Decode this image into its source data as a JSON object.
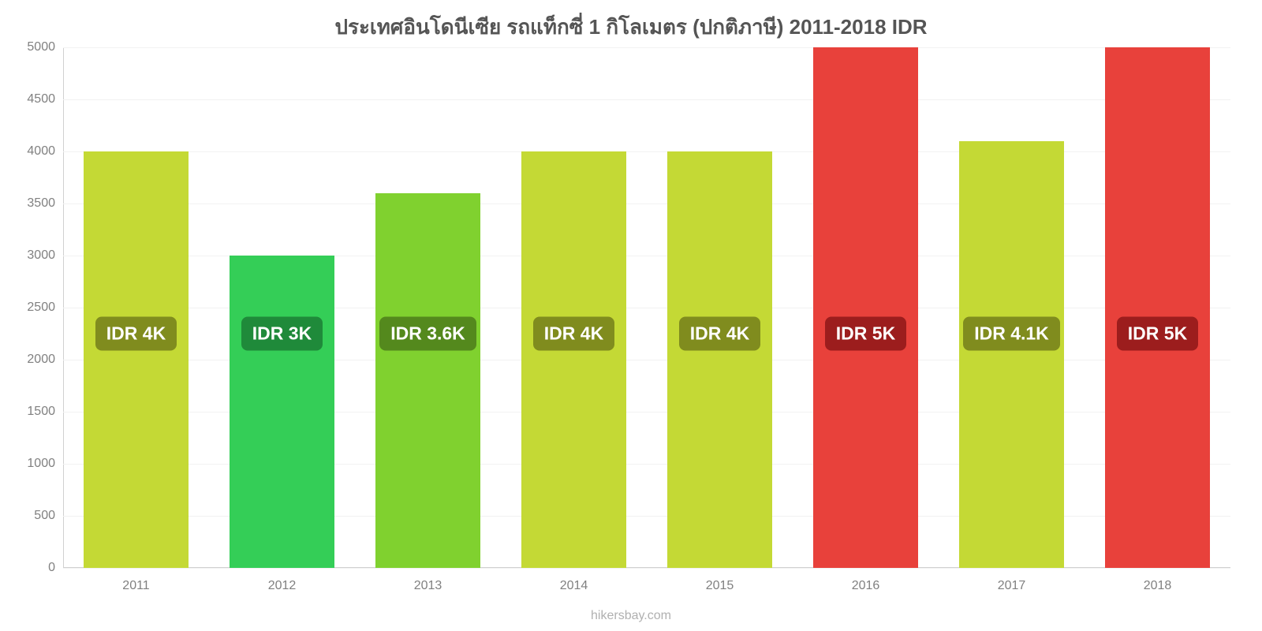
{
  "chart": {
    "type": "bar",
    "title": "ประเทศอินโดนีเซีย รถแท็กซี่ 1 กิโลเมตร (ปกติภาษี) 2011-2018 IDR",
    "title_fontsize": 26,
    "title_color": "#555555",
    "background_color": "#ffffff",
    "grid_color": "#f2f2f2",
    "axis_color": "#d0d0d0",
    "tick_color": "#808080",
    "tick_fontsize": 16,
    "watermark": "hikersbay.com",
    "watermark_color": "#b0b0b0",
    "ylim": [
      0,
      5000
    ],
    "ytick_step": 500,
    "yticks": [
      0,
      500,
      1000,
      1500,
      2000,
      2500,
      3000,
      3500,
      4000,
      4500,
      5000
    ],
    "bar_width_pct": 72,
    "label_fontsize": 23,
    "label_radius": 8,
    "categories": [
      "2011",
      "2012",
      "2013",
      "2014",
      "2015",
      "2016",
      "2017",
      "2018"
    ],
    "values": [
      4000,
      3000,
      3600,
      4000,
      4000,
      5000,
      4100,
      5000
    ],
    "value_labels": [
      "IDR 4K",
      "IDR 3K",
      "IDR 3.6K",
      "IDR 4K",
      "IDR 4K",
      "IDR 5K",
      "IDR 4.1K",
      "IDR 5K"
    ],
    "bar_colors": [
      "#c4d935",
      "#34ce57",
      "#80d12f",
      "#c4d935",
      "#c4d935",
      "#e8413b",
      "#c4d935",
      "#e8413b"
    ],
    "label_bg_colors": [
      "#808c1e",
      "#1f8a3a",
      "#54891d",
      "#808c1e",
      "#808c1e",
      "#9c1d1d",
      "#808c1e",
      "#9c1d1d"
    ],
    "label_center_value": 2250
  }
}
